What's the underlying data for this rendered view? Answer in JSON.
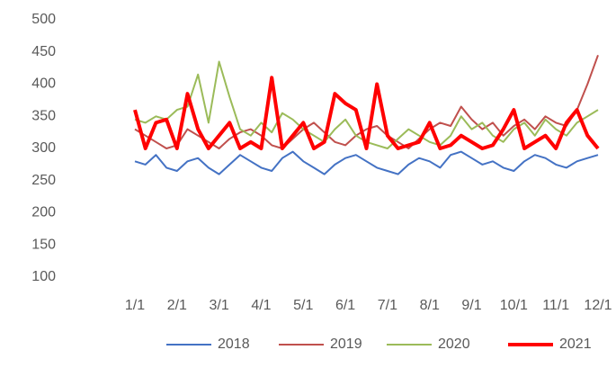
{
  "chart_data": {
    "type": "line",
    "categories": [
      "1/1",
      null,
      null,
      null,
      "2/1",
      null,
      null,
      null,
      "3/1",
      null,
      null,
      null,
      "4/1",
      null,
      null,
      null,
      "5/1",
      null,
      null,
      null,
      "6/1",
      null,
      null,
      null,
      "7/1",
      null,
      null,
      null,
      "8/1",
      null,
      null,
      null,
      "9/1",
      null,
      null,
      null,
      "10/1",
      null,
      null,
      null,
      "11/1",
      null,
      null,
      null,
      "12/1"
    ],
    "series": [
      {
        "name": "2018",
        "color": "#4472c4",
        "values": [
          280,
          275,
          290,
          270,
          265,
          280,
          285,
          270,
          260,
          275,
          290,
          280,
          270,
          265,
          285,
          295,
          280,
          270,
          260,
          275,
          285,
          290,
          280,
          270,
          265,
          260,
          275,
          285,
          280,
          270,
          290,
          295,
          285,
          275,
          280,
          270,
          265,
          280,
          290,
          285,
          275,
          270,
          280,
          285,
          290
        ]
      },
      {
        "name": "2019",
        "color": "#c0504d",
        "values": [
          330,
          320,
          310,
          300,
          305,
          330,
          320,
          310,
          300,
          315,
          325,
          330,
          320,
          305,
          300,
          315,
          330,
          340,
          325,
          310,
          305,
          320,
          330,
          335,
          320,
          310,
          300,
          315,
          330,
          340,
          335,
          365,
          345,
          330,
          340,
          320,
          335,
          345,
          330,
          350,
          340,
          335,
          360,
          400,
          445
        ]
      },
      {
        "name": "2020",
        "color": "#9bbb59",
        "values": [
          345,
          340,
          350,
          345,
          360,
          365,
          415,
          340,
          435,
          380,
          330,
          320,
          340,
          325,
          355,
          345,
          330,
          320,
          310,
          330,
          345,
          320,
          310,
          305,
          300,
          315,
          330,
          320,
          310,
          305,
          320,
          350,
          330,
          340,
          320,
          310,
          330,
          340,
          320,
          345,
          330,
          320,
          340,
          350,
          360
        ]
      },
      {
        "name": "2021",
        "color": "#ff0000",
        "values": [
          360,
          300,
          340,
          345,
          300,
          385,
          330,
          300,
          320,
          340,
          300,
          310,
          300,
          410,
          300,
          320,
          340,
          300,
          310,
          385,
          370,
          360,
          300,
          400,
          320,
          300,
          305,
          310,
          340,
          300,
          305,
          320,
          310,
          300,
          305,
          330,
          360,
          300,
          310,
          320,
          300,
          340,
          360,
          320,
          300
        ]
      }
    ],
    "ylim": [
      100,
      500
    ],
    "yticks": [
      100,
      150,
      200,
      250,
      300,
      350,
      400,
      450,
      500
    ],
    "grid": false,
    "legend": "bottom"
  }
}
